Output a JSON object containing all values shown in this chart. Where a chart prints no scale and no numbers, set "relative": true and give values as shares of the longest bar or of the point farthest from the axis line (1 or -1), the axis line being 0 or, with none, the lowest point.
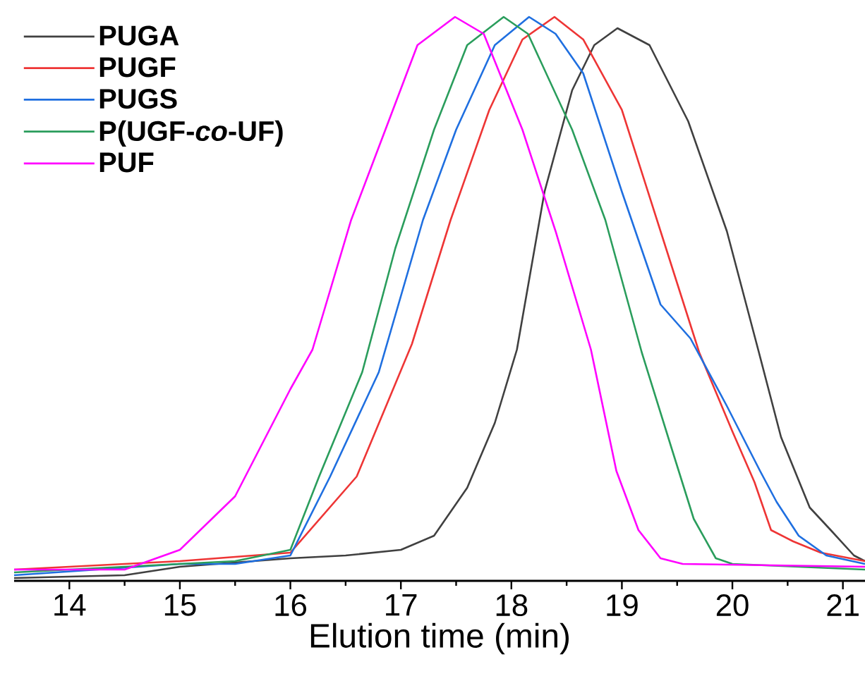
{
  "chart_data": {
    "type": "line",
    "relative": true,
    "xlabel": "Elution time (min)",
    "xlim": [
      13.5,
      21.2
    ],
    "xticks": [
      14,
      15,
      16,
      17,
      18,
      19,
      20,
      21
    ],
    "legend": "top left",
    "series": [
      {
        "name": "PUGA",
        "color": "#404040",
        "x": [
          13.5,
          14.5,
          15.0,
          16.0,
          16.5,
          17.0,
          17.3,
          17.6,
          17.85,
          18.05,
          18.3,
          18.55,
          18.75,
          18.96,
          19.25,
          19.6,
          19.95,
          20.24,
          20.44,
          20.7,
          20.89,
          21.1,
          21.2
        ],
        "values": [
          0.005,
          0.01,
          0.025,
          0.04,
          0.045,
          0.055,
          0.08,
          0.165,
          0.28,
          0.41,
          0.69,
          0.87,
          0.95,
          0.98,
          0.95,
          0.815,
          0.62,
          0.405,
          0.255,
          0.13,
          0.09,
          0.045,
          0.035
        ]
      },
      {
        "name": "PUGF",
        "color": "#ee3535",
        "x": [
          13.5,
          15.0,
          16.0,
          16.6,
          17.1,
          17.45,
          17.8,
          18.1,
          18.39,
          18.65,
          19.0,
          19.35,
          19.7,
          20.0,
          20.2,
          20.35,
          20.55,
          20.8,
          21.2
        ],
        "values": [
          0.02,
          0.035,
          0.05,
          0.185,
          0.42,
          0.64,
          0.835,
          0.96,
          1.0,
          0.96,
          0.835,
          0.62,
          0.405,
          0.265,
          0.175,
          0.09,
          0.07,
          0.05,
          0.035
        ]
      },
      {
        "name": "PUGS",
        "color": "#1f6fe0",
        "x": [
          13.5,
          15.0,
          15.5,
          16.0,
          16.36,
          16.8,
          17.2,
          17.5,
          17.85,
          18.16,
          18.4,
          18.65,
          19.0,
          19.35,
          19.62,
          19.95,
          20.25,
          20.4,
          20.6,
          20.85,
          21.2
        ],
        "values": [
          0.01,
          0.03,
          0.03,
          0.045,
          0.185,
          0.37,
          0.64,
          0.8,
          0.95,
          1.0,
          0.97,
          0.9,
          0.69,
          0.49,
          0.43,
          0.31,
          0.195,
          0.14,
          0.08,
          0.045,
          0.03
        ]
      },
      {
        "name": "P(UGF-*co*-UF)",
        "color": "#2a9d5c",
        "x": [
          13.5,
          15.0,
          15.5,
          16.0,
          16.26,
          16.65,
          16.95,
          17.3,
          17.6,
          17.93,
          18.15,
          18.55,
          18.85,
          19.18,
          19.45,
          19.65,
          19.85,
          20.0,
          21.2
        ],
        "values": [
          0.015,
          0.03,
          0.035,
          0.055,
          0.185,
          0.37,
          0.59,
          0.8,
          0.95,
          1.0,
          0.97,
          0.8,
          0.64,
          0.405,
          0.235,
          0.11,
          0.04,
          0.03,
          0.02
        ]
      },
      {
        "name": "PUF",
        "color": "#ff00ff",
        "x": [
          13.5,
          14.5,
          15.0,
          15.5,
          16.0,
          16.2,
          16.55,
          16.86,
          17.15,
          17.49,
          17.75,
          18.1,
          18.4,
          18.72,
          18.95,
          19.15,
          19.35,
          19.55,
          21.2
        ],
        "values": [
          0.02,
          0.02,
          0.055,
          0.15,
          0.34,
          0.41,
          0.64,
          0.8,
          0.95,
          1.0,
          0.97,
          0.8,
          0.62,
          0.41,
          0.195,
          0.09,
          0.04,
          0.03,
          0.025
        ]
      }
    ]
  }
}
